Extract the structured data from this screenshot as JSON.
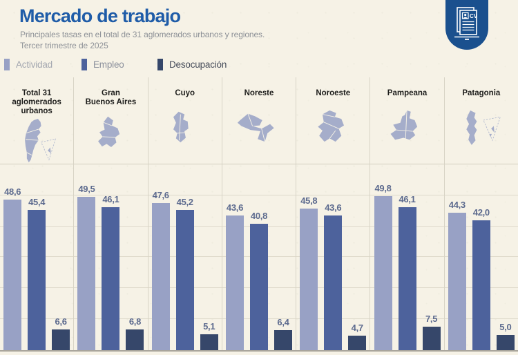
{
  "header": {
    "title": "Mercado de trabajo",
    "subtitle_line1": "Principales tasas en el total de 31 aglomerados urbanos y regiones.",
    "subtitle_line2": "Tercer trimestre de 2025"
  },
  "badge": {
    "icon": "cv-document-icon",
    "cv_label": "CV"
  },
  "legend": [
    {
      "label": "Actividad",
      "color": "#98a1c5",
      "text_color": "#a3a7b0"
    },
    {
      "label": "Empleo",
      "color": "#4d629c",
      "text_color": "#8b909c"
    },
    {
      "label": "Desocupación",
      "color": "#36476a",
      "text_color": "#454b59"
    }
  ],
  "chart_data": {
    "type": "bar",
    "title": "Mercado de trabajo",
    "subtitle": "Principales tasas en el total de 31 aglomerados urbanos y regiones. Tercer trimestre de 2025",
    "categories": [
      "Total 31 aglomerados urbanos",
      "Gran Buenos Aires",
      "Cuyo",
      "Noreste",
      "Noroeste",
      "Pampeana",
      "Patagonia"
    ],
    "category_labels": [
      "Total 31\naglomerados\nurbanos",
      "Gran\nBuenos Aires",
      "Cuyo",
      "Noreste",
      "Noroeste",
      "Pampeana",
      "Patagonia"
    ],
    "maps": [
      "argentina",
      "gba",
      "cuyo",
      "noreste",
      "noroeste",
      "pampeana",
      "patagonia"
    ],
    "series": [
      {
        "name": "Actividad",
        "color": "#98a1c5",
        "values": [
          48.6,
          49.5,
          47.6,
          43.6,
          45.8,
          49.8,
          44.3
        ]
      },
      {
        "name": "Empleo",
        "color": "#4d629c",
        "values": [
          45.4,
          46.1,
          45.2,
          40.8,
          43.6,
          46.1,
          42.0
        ]
      },
      {
        "name": "Desocupación",
        "color": "#36476a",
        "values": [
          6.6,
          6.8,
          5.1,
          6.4,
          4.7,
          7.5,
          5.0
        ]
      }
    ],
    "value_labels": [
      [
        "48,6",
        "45,4",
        "6,6"
      ],
      [
        "49,5",
        "46,1",
        "6,8"
      ],
      [
        "47,6",
        "45,2",
        "5,1"
      ],
      [
        "43,6",
        "40,8",
        "6,4"
      ],
      [
        "45,8",
        "43,6",
        "4,7"
      ],
      [
        "49,8",
        "46,1",
        "7,5"
      ],
      [
        "44,3",
        "42,0",
        "5,0"
      ]
    ],
    "xlabel": "",
    "ylabel": "",
    "ylim": [
      0,
      60
    ],
    "grid": true,
    "legend_position": "top"
  },
  "colors": {
    "background": "#f6f2e6",
    "title": "#1f5ca8",
    "subtitle": "#8d9197",
    "value_label": "#5c6a8e",
    "map_fill": "#a5adca",
    "map_dash_outline": "#b6bdd1",
    "grid": "#ded9ca",
    "divider": "#d7d3c5",
    "baseline": "#a9a59b",
    "badge": "#1a508e"
  }
}
